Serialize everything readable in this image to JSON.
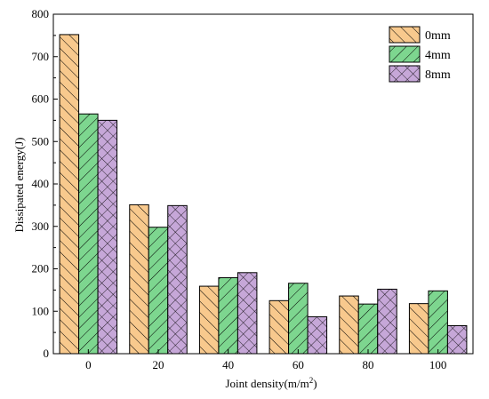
{
  "chart_data": {
    "type": "bar",
    "title": "",
    "xlabel": "Joint density(m/m",
    "xlabel_sup": "2",
    "xlabel_end": ")",
    "ylabel": "Dissipated energy(J)",
    "categories": [
      "0",
      "20",
      "40",
      "60",
      "80",
      "100"
    ],
    "series": [
      {
        "name": "0mm",
        "values": [
          752,
          351,
          159,
          125,
          136,
          118
        ],
        "color": "#f8c98d",
        "pattern": "hatch-backslash"
      },
      {
        "name": "4mm",
        "values": [
          565,
          298,
          179,
          166,
          117,
          148
        ],
        "color": "#7dd68f",
        "pattern": "hatch-slash"
      },
      {
        "name": "8mm",
        "values": [
          550,
          349,
          191,
          87,
          152,
          66
        ],
        "color": "#c6a7d8",
        "pattern": "crosshatch"
      }
    ],
    "ylim": [
      0,
      800
    ],
    "yticks": [
      "0",
      "100",
      "200",
      "300",
      "400",
      "500",
      "600",
      "700",
      "800"
    ],
    "legend_position": "top-right",
    "grid": false
  }
}
